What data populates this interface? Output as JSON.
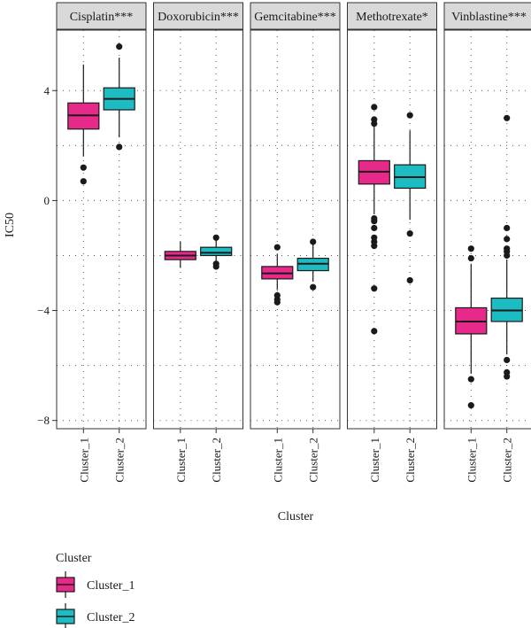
{
  "chart_data": {
    "type": "boxplot",
    "facets": [
      "Cisplatin***",
      "Doxorubicin***",
      "Gemcitabine***",
      "Methotrexate*",
      "Vinblastine***"
    ],
    "categories": [
      "Cluster_1",
      "Cluster_2"
    ],
    "xlabel": "Cluster",
    "ylabel": "IC50",
    "ylim": [
      -8.3,
      6.2
    ],
    "yticks": [
      -8,
      -4,
      0,
      4
    ],
    "grid": "dotted",
    "legend": {
      "title": "Cluster",
      "position": "bottom-left",
      "entries": [
        {
          "name": "Cluster_1",
          "color": "#e7298a"
        },
        {
          "name": "Cluster_2",
          "color": "#1cbcc2"
        }
      ]
    },
    "boxes": [
      [
        {
          "cluster": "Cluster_1",
          "min": 1.6,
          "q1": 2.6,
          "median": 3.1,
          "q3": 3.55,
          "max": 4.95,
          "outliers": [
            1.2,
            0.7
          ]
        },
        {
          "cluster": "Cluster_2",
          "min": 2.3,
          "q1": 3.3,
          "median": 3.7,
          "q3": 4.1,
          "max": 5.2,
          "outliers": [
            5.6,
            1.95
          ]
        }
      ],
      [
        {
          "cluster": "Cluster_1",
          "min": -2.45,
          "q1": -2.15,
          "median": -2.0,
          "q3": -1.85,
          "max": -1.5,
          "outliers": []
        },
        {
          "cluster": "Cluster_2",
          "min": -2.25,
          "q1": -2.0,
          "median": -1.9,
          "q3": -1.7,
          "max": -1.45,
          "outliers": [
            -1.35,
            -2.3,
            -2.4
          ]
        }
      ],
      [
        {
          "cluster": "Cluster_1",
          "min": -3.25,
          "q1": -2.85,
          "median": -2.65,
          "q3": -2.4,
          "max": -1.95,
          "outliers": [
            -1.7,
            -3.45,
            -3.6,
            -3.7
          ]
        },
        {
          "cluster": "Cluster_2",
          "min": -2.95,
          "q1": -2.55,
          "median": -2.3,
          "q3": -2.1,
          "max": -1.6,
          "outliers": [
            -1.5,
            -3.15
          ]
        }
      ],
      [
        {
          "cluster": "Cluster_1",
          "min": -0.5,
          "q1": 0.6,
          "median": 1.05,
          "q3": 1.45,
          "max": 2.7,
          "outliers": [
            3.4,
            2.95,
            2.8,
            -0.65,
            -0.75,
            -1.0,
            -1.35,
            -1.5,
            -1.65,
            -3.2,
            -4.75
          ]
        },
        {
          "cluster": "Cluster_2",
          "min": -0.7,
          "q1": 0.45,
          "median": 0.85,
          "q3": 1.3,
          "max": 2.55,
          "outliers": [
            3.1,
            -1.2,
            -2.9
          ]
        }
      ],
      [
        {
          "cluster": "Cluster_1",
          "min": -6.3,
          "q1": -4.85,
          "median": -4.4,
          "q3": -3.9,
          "max": -2.3,
          "outliers": [
            -1.75,
            -2.1,
            -6.5,
            -7.45
          ]
        },
        {
          "cluster": "Cluster_2",
          "min": -5.6,
          "q1": -4.4,
          "median": -4.0,
          "q3": -3.55,
          "max": -2.15,
          "outliers": [
            3.0,
            -1.0,
            -1.4,
            -1.75,
            -1.85,
            -2.0,
            -5.8,
            -6.25,
            -6.4
          ]
        }
      ]
    ]
  }
}
